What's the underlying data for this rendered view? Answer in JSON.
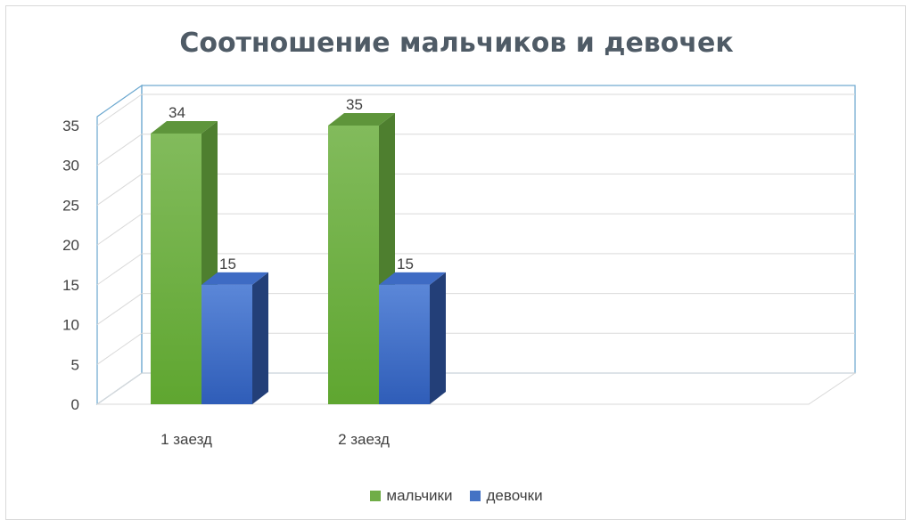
{
  "chart_data": {
    "type": "bar",
    "title": "Соотношение мальчиков и девочек",
    "categories": [
      "1 заезд",
      "2 заезд"
    ],
    "series": [
      {
        "name": "мальчики",
        "values": [
          34,
          35
        ],
        "color": "#70ad47"
      },
      {
        "name": "девочки",
        "values": [
          15,
          15
        ],
        "color": "#4472c4"
      }
    ],
    "ylim": [
      0,
      35
    ],
    "yticks": [
      "0",
      "5",
      "10",
      "15",
      "20",
      "25",
      "30",
      "35"
    ],
    "data_labels": true,
    "grid": true,
    "legend_position": "bottom",
    "style": "3d-clustered-column"
  }
}
